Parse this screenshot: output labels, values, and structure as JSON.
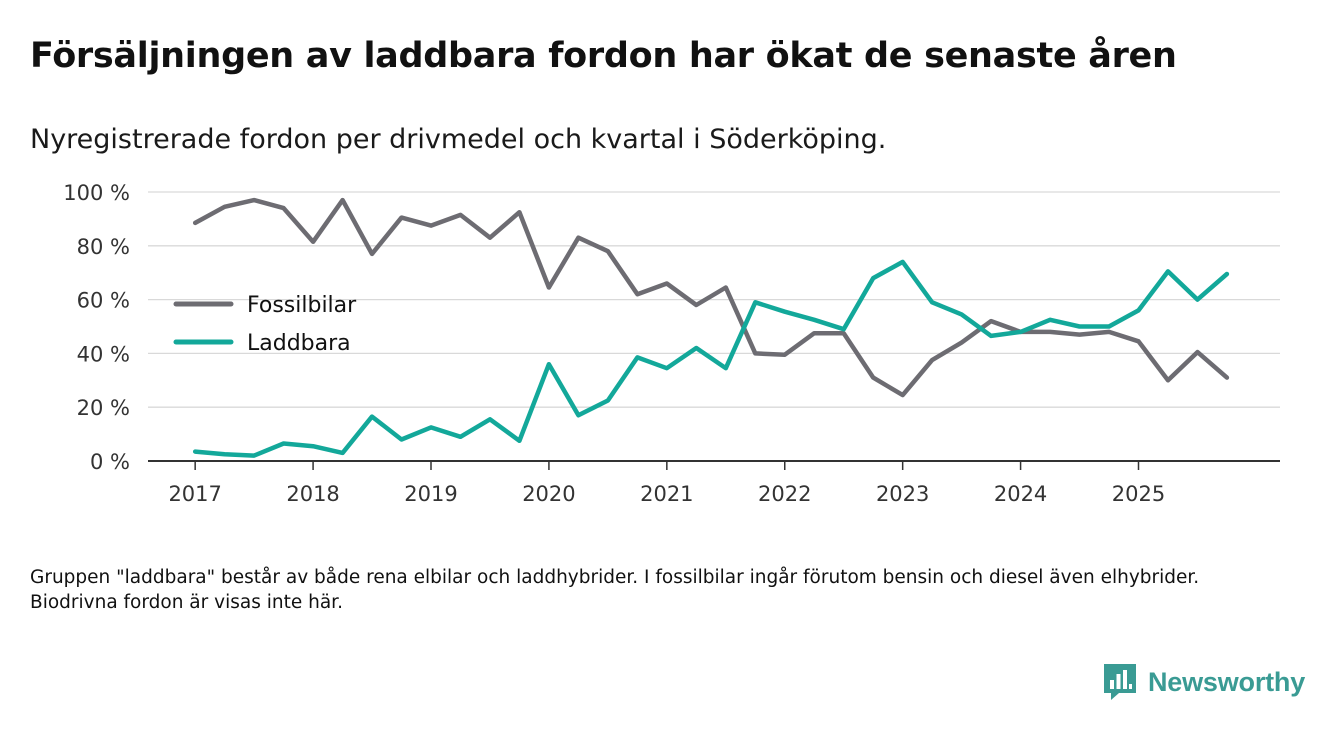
{
  "title": "Försäljningen av laddbara fordon har ökat de senaste åren",
  "subtitle": "Nyregistrerade fordon per drivmedel och kvartal i Söderköping.",
  "footnote": "Gruppen \"laddbara\" består av både rena elbilar och laddhybrider. I fossilbilar ingår förutom bensin och diesel även elhybrider. Biodrivna fordon är visas inte här.",
  "brand": {
    "name": "Newsworthy",
    "color": "#3a9b94",
    "logo_icon": "bar-chart-speech-bubble-icon"
  },
  "chart_data": {
    "type": "line",
    "title": "Försäljningen av laddbara fordon har ökat de senaste åren",
    "subtitle": "Nyregistrerade fordon per drivmedel och kvartal i Söderköping.",
    "xlabel": "",
    "ylabel": "",
    "x_unit": "year (quarterly)",
    "x": [
      2017.0,
      2017.25,
      2017.5,
      2017.75,
      2018.0,
      2018.25,
      2018.5,
      2018.75,
      2019.0,
      2019.25,
      2019.5,
      2019.75,
      2020.0,
      2020.25,
      2020.5,
      2020.75,
      2021.0,
      2021.25,
      2021.5,
      2021.75,
      2022.0,
      2022.25,
      2022.5,
      2022.75,
      2023.0,
      2023.25,
      2023.5,
      2023.75,
      2024.0,
      2024.25,
      2024.5,
      2024.75,
      2025.0,
      2025.25,
      2025.5,
      2025.75
    ],
    "xlim": [
      2016.6,
      2026.2
    ],
    "x_ticks": [
      2017,
      2018,
      2019,
      2020,
      2021,
      2022,
      2023,
      2024,
      2025
    ],
    "x_tick_labels": [
      "2017",
      "2018",
      "2019",
      "2020",
      "2021",
      "2022",
      "2023",
      "2024",
      "2025"
    ],
    "ylim": [
      0,
      100
    ],
    "y_ticks": [
      0,
      20,
      40,
      60,
      80,
      100
    ],
    "y_tick_labels": [
      "0 %",
      "20 %",
      "40 %",
      "60 %",
      "80 %",
      "100 %"
    ],
    "grid": true,
    "legend_position": "middle-left",
    "series": [
      {
        "name": "Fossilbilar",
        "color": "#6d6c72",
        "values": [
          88.5,
          94.5,
          97,
          94,
          81.5,
          97,
          77,
          90.5,
          87.5,
          91.5,
          83,
          92.5,
          64.5,
          83,
          78,
          62,
          66,
          58,
          64.5,
          40,
          39.5,
          47.5,
          47.5,
          31,
          24.5,
          37.5,
          44,
          52,
          48,
          48,
          47,
          48,
          44.5,
          30,
          40.5,
          31
        ]
      },
      {
        "name": "Laddbara",
        "color": "#13a89a",
        "values": [
          3.5,
          2.5,
          2,
          6.5,
          5.5,
          3,
          16.5,
          8,
          12.5,
          9,
          15.5,
          7.5,
          36,
          17,
          22.5,
          38.5,
          34.5,
          42,
          34.5,
          59,
          55.5,
          52.5,
          49,
          68,
          74,
          59,
          54.5,
          46.5,
          48,
          52.5,
          50,
          50,
          56,
          70.5,
          60,
          69.5
        ]
      }
    ]
  }
}
